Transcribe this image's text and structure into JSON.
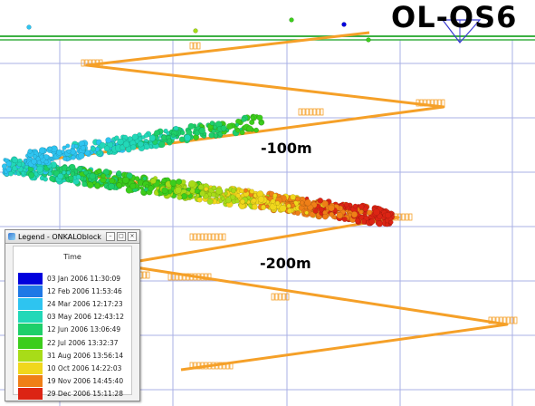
{
  "view": {
    "title": "OL-OS6",
    "depth_labels": [
      "-100m",
      "-200m"
    ]
  },
  "legend": {
    "window_title": "Legend - ONKALOblock",
    "column_header": "Time",
    "buttons": [
      "minimize",
      "maximize",
      "close"
    ],
    "items": [
      {
        "label": "03 Jan 2006 11:30:09",
        "color": "#0000dd"
      },
      {
        "label": "12 Feb 2006 11:53:46",
        "color": "#1f78e6"
      },
      {
        "label": "24 Mar 2006 12:17:23",
        "color": "#2ec4f0"
      },
      {
        "label": "03 May 2006 12:43:12",
        "color": "#22d8b8"
      },
      {
        "label": "12 Jun 2006 13:06:49",
        "color": "#1ecf6a"
      },
      {
        "label": "22 Jul 2006 13:32:37",
        "color": "#3ccd1c"
      },
      {
        "label": "31 Aug 2006 13:56:14",
        "color": "#a8dc18"
      },
      {
        "label": "10 Oct 2006 14:22:03",
        "color": "#f0d71c"
      },
      {
        "label": "19 Nov 2006 14:45:40",
        "color": "#ef7f17"
      },
      {
        "label": "29 Dec 2006 15:11:28",
        "color": "#dc2414"
      }
    ]
  },
  "colors": {
    "tunnel": "#f5a028",
    "surface": "#3cb043",
    "grid": "#aab0e6",
    "marker": "#3c3cd2"
  }
}
